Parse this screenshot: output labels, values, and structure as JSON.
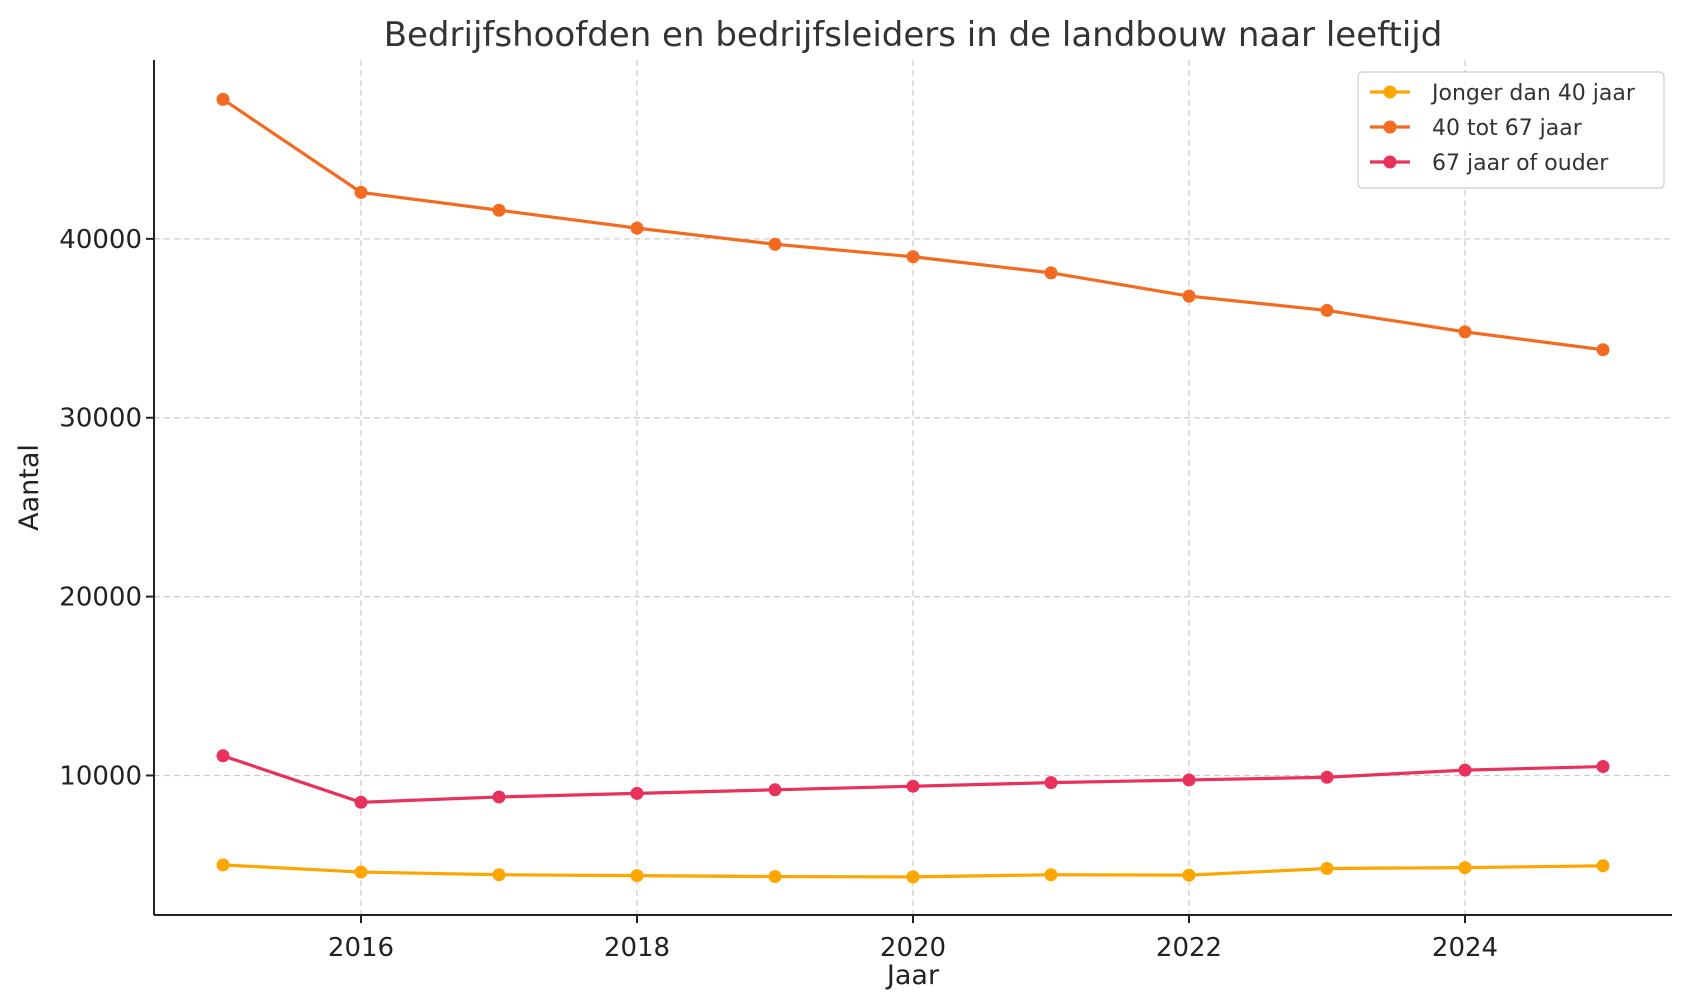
{
  "chart_data": {
    "type": "line",
    "title": "Bedrijfshoofden en bedrijfsleiders in de landbouw naar leeftijd",
    "xlabel": "Jaar",
    "ylabel": "Aantal",
    "x": [
      2015,
      2016,
      2017,
      2018,
      2019,
      2020,
      2021,
      2022,
      2023,
      2024,
      2025
    ],
    "xlim": [
      2014.5,
      2025.5
    ],
    "ylim": [
      2200,
      50000
    ],
    "xticks": [
      2016,
      2018,
      2020,
      2022,
      2024
    ],
    "yticks": [
      10000,
      20000,
      30000,
      40000
    ],
    "grid": true,
    "legend_position": "top-right",
    "series": [
      {
        "name": "Jonger dan 40 jaar",
        "color": "#FFA500",
        "values": [
          5000,
          4600,
          4450,
          4400,
          4350,
          4330,
          4450,
          4430,
          4800,
          4850,
          4950
        ]
      },
      {
        "name": "40 tot 67 jaar",
        "color": "#F26B21",
        "values": [
          47800,
          42600,
          41600,
          40600,
          39700,
          39000,
          38100,
          36800,
          36000,
          34800,
          33800
        ]
      },
      {
        "name": "67 jaar of ouder",
        "color": "#E8315B",
        "values": [
          11100,
          8500,
          8800,
          9000,
          9200,
          9400,
          9600,
          9750,
          9900,
          10300,
          10500
        ]
      }
    ]
  }
}
